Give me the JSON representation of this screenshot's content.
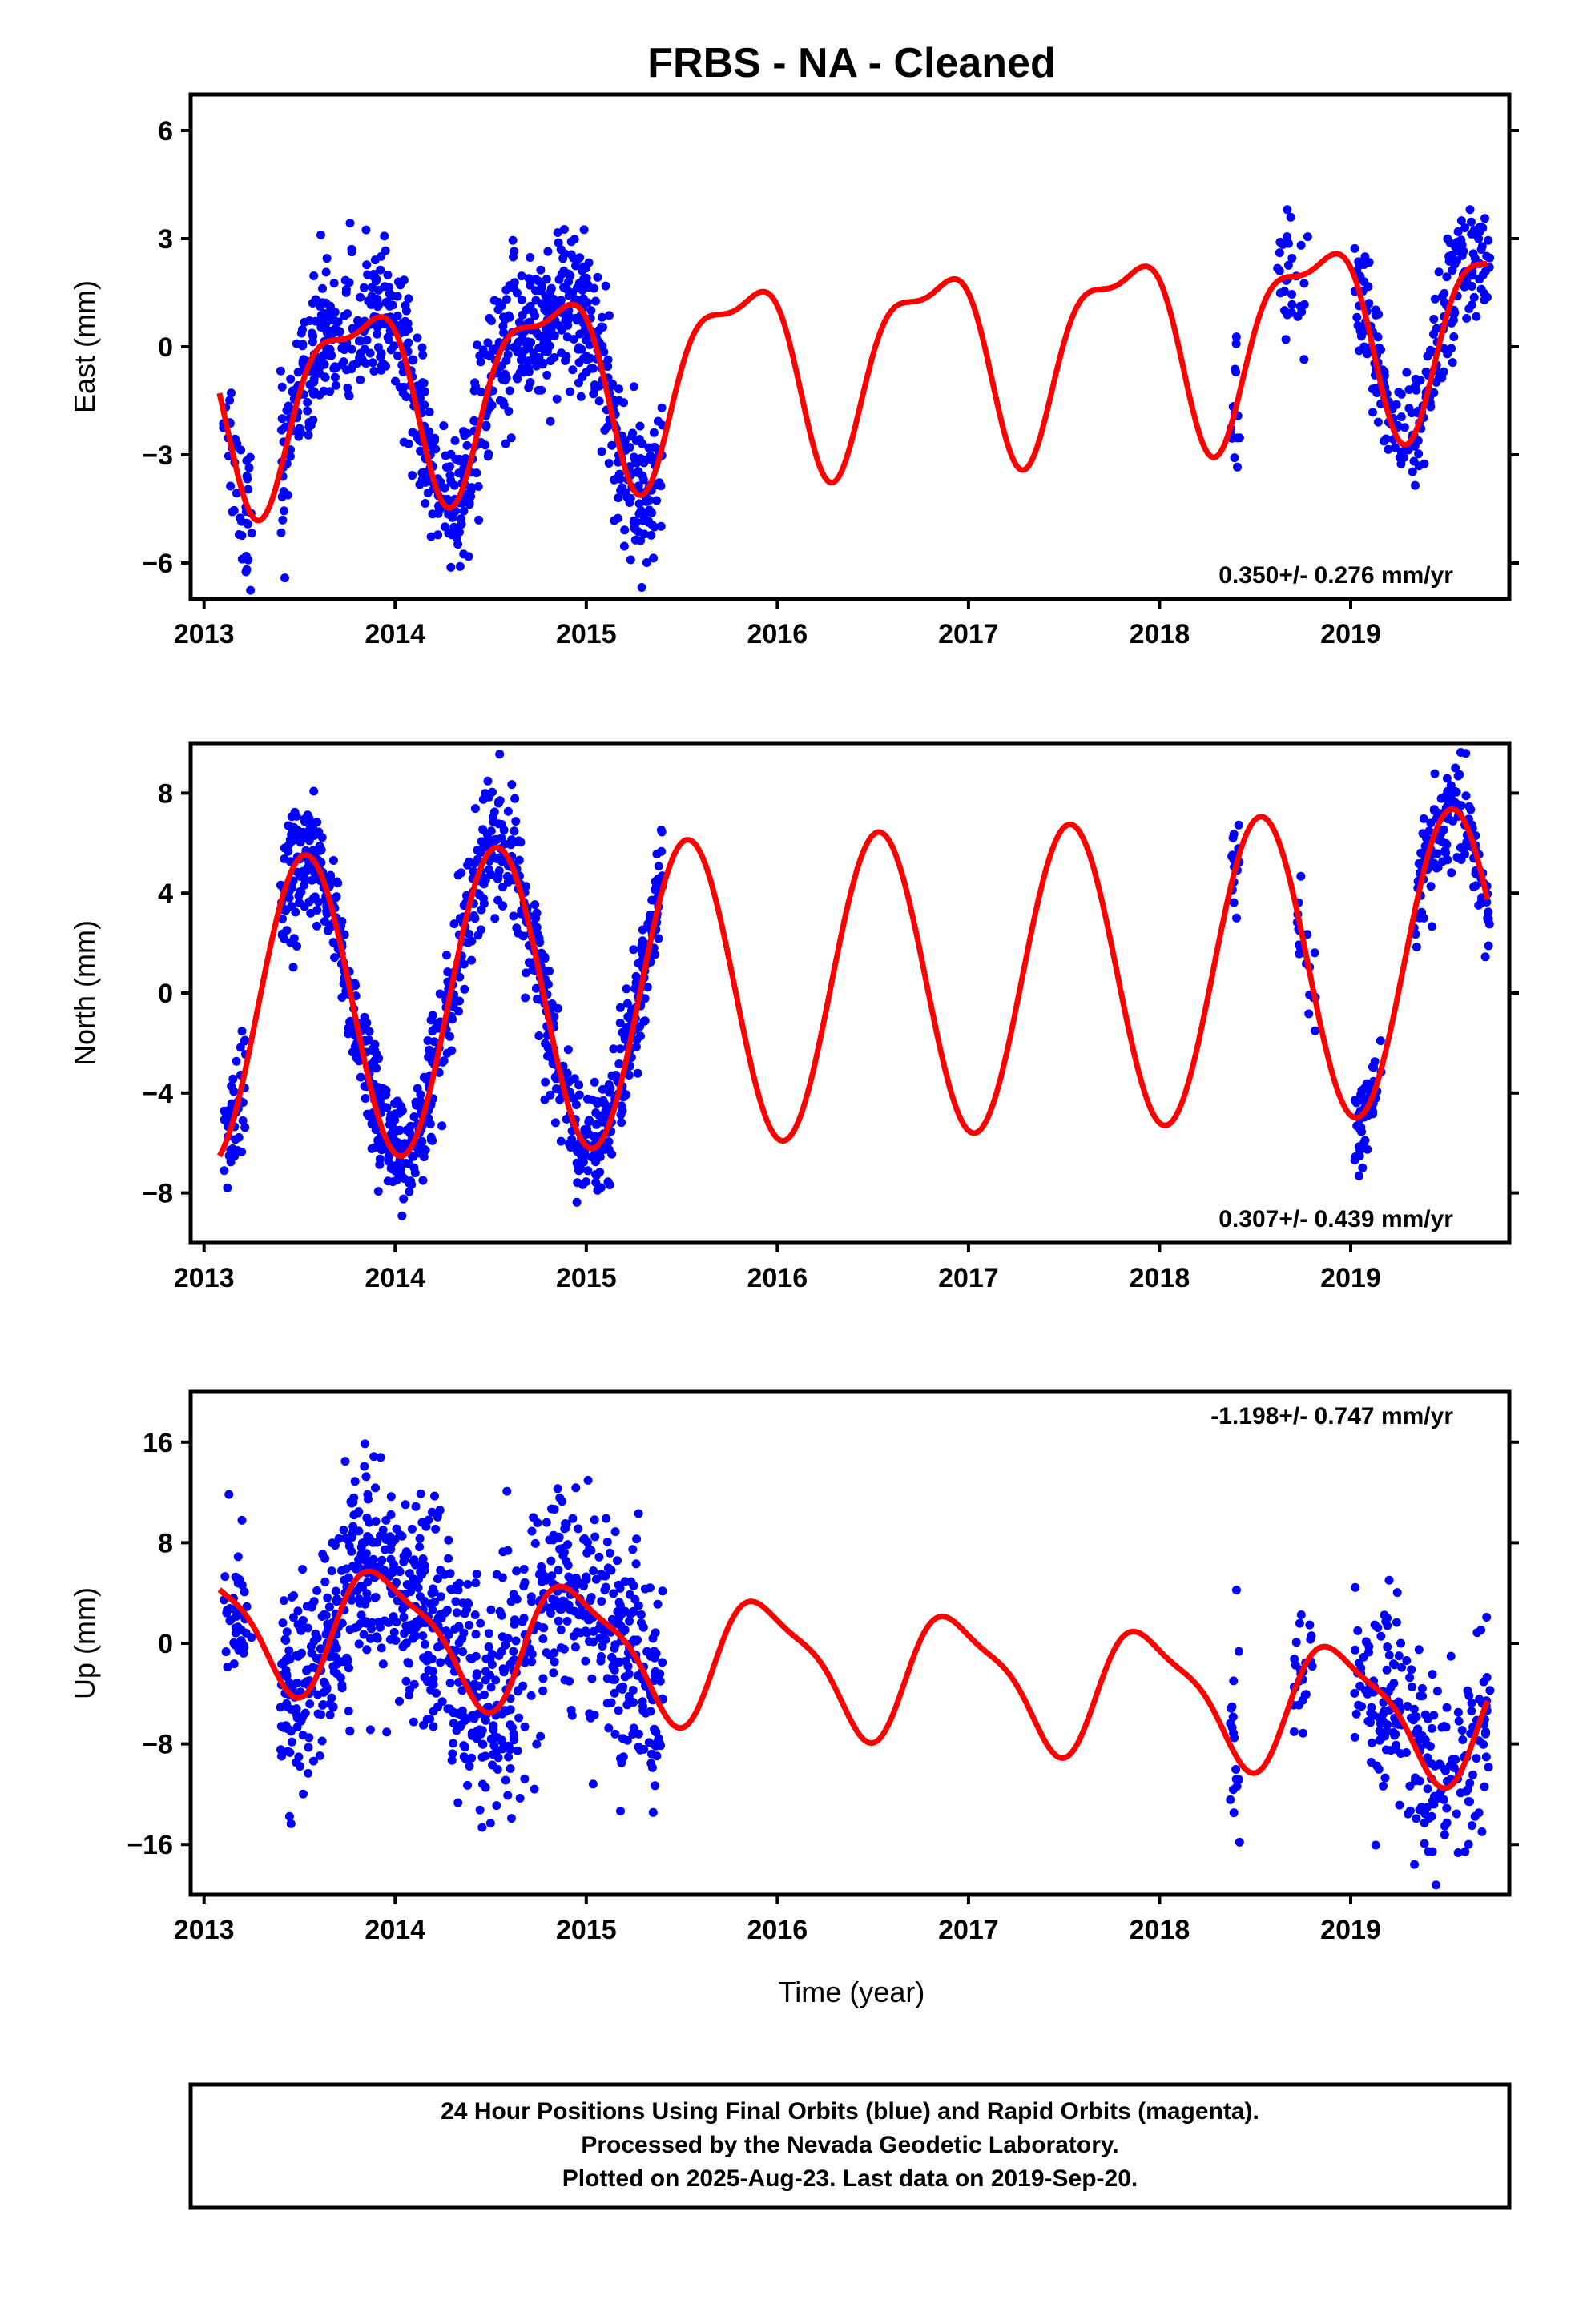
{
  "chart_data": {
    "type": "scatter",
    "title": "FRBS  - NA - Cleaned",
    "xlabel": "Time (year)",
    "xlim": [
      2012.93,
      2019.83
    ],
    "xticks": [
      2013,
      2014,
      2015,
      2016,
      2017,
      2018,
      2019
    ],
    "point_color": "#0000ff",
    "model_color": "#ff0000",
    "panels": [
      {
        "name": "east",
        "ylabel": "East (mm)",
        "ylim": [
          -7,
          7
        ],
        "yticks": [
          -6,
          -3,
          0,
          3,
          6
        ],
        "rate_label": "0.350+/- 0.276 mm/yr",
        "rate_position": "bottom-right",
        "segments": [
          {
            "t0": 2013.1,
            "t1": 2013.25,
            "n": 40,
            "noise": 1.2
          },
          {
            "t0": 2013.4,
            "t1": 2015.4,
            "n": 900,
            "noise": 1.0
          },
          {
            "t0": 2018.37,
            "t1": 2018.42,
            "n": 15,
            "noise": 0.8
          },
          {
            "t0": 2018.6,
            "t1": 2018.78,
            "n": 30,
            "noise": 0.9
          },
          {
            "t0": 2019.02,
            "t1": 2019.73,
            "n": 230,
            "noise": 0.9
          }
        ],
        "model": {
          "offset": -0.35,
          "rate": 0.35,
          "a1": 2.5,
          "phi1": 0.55,
          "a2": 0.9,
          "phi2": 0.4,
          "t_ref": 2016.4
        }
      },
      {
        "name": "north",
        "ylabel": "North (mm)",
        "ylim": [
          -10,
          10
        ],
        "yticks": [
          -8,
          -4,
          0,
          4,
          8
        ],
        "rate_label": "0.307+/- 0.439 mm/yr",
        "rate_position": "bottom-right",
        "segments": [
          {
            "t0": 2013.1,
            "t1": 2013.22,
            "n": 45,
            "noise": 1.0
          },
          {
            "t0": 2013.4,
            "t1": 2015.4,
            "n": 950,
            "noise": 1.2
          },
          {
            "t0": 2018.37,
            "t1": 2018.42,
            "n": 15,
            "noise": 0.9
          },
          {
            "t0": 2018.72,
            "t1": 2018.82,
            "n": 20,
            "noise": 1.0
          },
          {
            "t0": 2019.02,
            "t1": 2019.16,
            "n": 60,
            "noise": 0.9
          },
          {
            "t0": 2019.33,
            "t1": 2019.73,
            "n": 140,
            "noise": 1.0
          }
        ],
        "model": {
          "offset": 0.3,
          "rate": 0.307,
          "a1": 6.1,
          "phi1": 0.28,
          "a2": 0.0,
          "phi2": 0.0,
          "t_ref": 2016.4
        }
      },
      {
        "name": "up",
        "ylabel": "Up (mm)",
        "ylim": [
          -20,
          20
        ],
        "yticks": [
          -16,
          -8,
          0,
          8,
          16
        ],
        "rate_label": "-1.198+/- 0.747 mm/yr",
        "rate_position": "top-right",
        "segments": [
          {
            "t0": 2013.1,
            "t1": 2013.25,
            "n": 40,
            "noise": 3.0
          },
          {
            "t0": 2013.4,
            "t1": 2015.4,
            "n": 950,
            "noise": 4.5
          },
          {
            "t0": 2018.37,
            "t1": 2018.42,
            "n": 18,
            "noise": 3.5
          },
          {
            "t0": 2018.7,
            "t1": 2018.8,
            "n": 25,
            "noise": 2.5
          },
          {
            "t0": 2019.02,
            "t1": 2019.73,
            "n": 230,
            "noise": 4.0
          }
        ],
        "model": {
          "offset": -2.0,
          "rate": -1.198,
          "a1": 4.8,
          "phi1": 0.7,
          "a2": 1.3,
          "phi2": 0.65,
          "t_ref": 2016.4
        }
      }
    ],
    "footer": [
      "24 Hour Positions Using Final Orbits (blue) and Rapid Orbits (magenta).",
      "Processed by the Nevada Geodetic Laboratory.",
      "Plotted on 2025-Aug-23. Last data on 2019-Sep-20."
    ]
  }
}
